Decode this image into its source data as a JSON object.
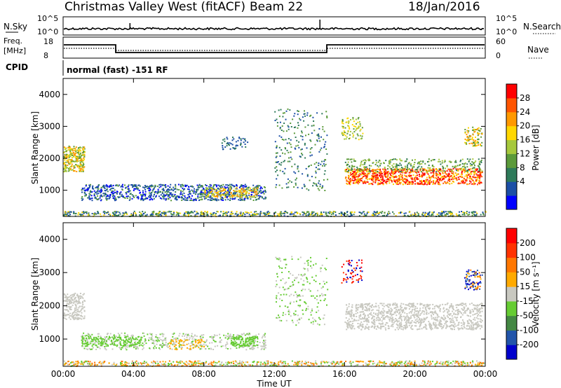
{
  "header": {
    "title": "Christmas Valley West (fitACF)",
    "beam": "Beam 22",
    "date": "18/Jan/2016"
  },
  "top_panels": {
    "nsky_label": "N.Sky",
    "nsky_ticks": [
      "10^5",
      "10^0"
    ],
    "nsearch_label": "N.Search",
    "nsearch_ticks": [
      "10^5",
      "10^0"
    ],
    "freq_label_1": "Freq.",
    "freq_label_2": "[MHz]",
    "freq_ticks": [
      "18",
      "8"
    ],
    "nave_label": "Nave",
    "nave_ticks": [
      "60",
      "0"
    ],
    "cpid_label": "CPID",
    "cpid_text": "normal (fast) -151 RF"
  },
  "chart_data": [
    {
      "type": "heatmap",
      "name": "power",
      "ylabel": "Slant Range [km]",
      "yticks": [
        "4000",
        "3000",
        "2000",
        "1000"
      ],
      "ylim": [
        180,
        4500
      ],
      "xlim": [
        0,
        24
      ],
      "colorbar": {
        "label": "Power [dB]",
        "ticks": [
          "28",
          "24",
          "20",
          "16",
          "12",
          "8",
          "4"
        ],
        "colors": [
          "#0000ff",
          "#1c4fa6",
          "#2e7a5a",
          "#5b9a3a",
          "#a6c83c",
          "#ffd700",
          "#ff9900",
          "#ff5500",
          "#ff0000"
        ]
      }
    },
    {
      "type": "heatmap",
      "name": "velocity",
      "ylabel": "Slant Range [km]",
      "yticks": [
        "4000",
        "3000",
        "2000",
        "1000"
      ],
      "ylim": [
        180,
        4500
      ],
      "xlim": [
        0,
        24
      ],
      "xlabel": "Time UT",
      "xticks": [
        "00:00",
        "04:00",
        "08:00",
        "12:00",
        "16:00",
        "20:00",
        "00:00"
      ],
      "colorbar": {
        "label": "Velocity [m s⁻¹]",
        "ticks": [
          "200",
          "100",
          "50",
          "15",
          "-15",
          "-50",
          "-100",
          "-200"
        ],
        "colors": [
          "#0000cc",
          "#2255aa",
          "#448844",
          "#66cc33",
          "#c8c8c0",
          "#ffaa00",
          "#ff7700",
          "#ff3300",
          "#ff0000"
        ]
      }
    }
  ]
}
